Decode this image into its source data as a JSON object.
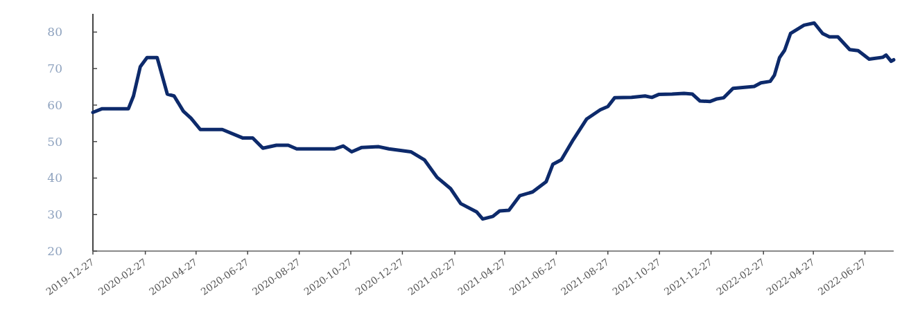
{
  "chart_data": {
    "type": "line",
    "x": [
      "2019-12-27",
      "2020-01-07",
      "2020-02-07",
      "2020-02-13",
      "2020-02-21",
      "2020-02-29",
      "2020-03-12",
      "2020-03-24",
      "2020-04-01",
      "2020-04-12",
      "2020-04-21",
      "2020-05-02",
      "2020-05-28",
      "2020-06-21",
      "2020-07-03",
      "2020-07-15",
      "2020-07-31",
      "2020-08-14",
      "2020-08-24",
      "2020-10-08",
      "2020-10-18",
      "2020-10-28",
      "2020-11-09",
      "2020-11-29",
      "2020-12-11",
      "2021-01-06",
      "2021-01-22",
      "2021-02-06",
      "2021-02-22",
      "2021-03-06",
      "2021-03-25",
      "2021-04-01",
      "2021-04-13",
      "2021-04-21",
      "2021-05-02",
      "2021-05-15",
      "2021-05-30",
      "2021-06-15",
      "2021-06-23",
      "2021-07-03",
      "2021-07-17",
      "2021-08-02",
      "2021-08-18",
      "2021-08-27",
      "2021-09-04",
      "2021-09-24",
      "2021-10-10",
      "2021-10-18",
      "2021-10-26",
      "2021-11-11",
      "2021-11-25",
      "2021-12-05",
      "2021-12-14",
      "2021-12-26",
      "2022-01-03",
      "2022-01-11",
      "2022-01-22",
      "2022-02-16",
      "2022-02-24",
      "2022-03-07",
      "2022-03-12",
      "2022-03-18",
      "2022-03-24",
      "2022-03-31",
      "2022-04-16",
      "2022-04-28",
      "2022-05-08",
      "2022-05-16",
      "2022-05-26",
      "2022-06-09",
      "2022-06-19",
      "2022-07-02",
      "2022-07-18",
      "2022-07-22",
      "2022-07-28",
      "2022-07-31"
    ],
    "series": [
      {
        "color": "#0d2a6b",
        "values": [
          58,
          59,
          59,
          62.5,
          70.5,
          73,
          73,
          63,
          62.5,
          58.3,
          56.4,
          53.3,
          53.3,
          51,
          51,
          48.2,
          49,
          49,
          48,
          48,
          48.8,
          47.2,
          48.4,
          48.6,
          48,
          47.2,
          45,
          40.2,
          37.1,
          33,
          30.7,
          28.8,
          29.5,
          31,
          31.2,
          35.2,
          36.2,
          39,
          43.8,
          45,
          50.5,
          56.2,
          58.7,
          59.6,
          62,
          62.1,
          62.5,
          62.1,
          62.9,
          63,
          63.2,
          63,
          61.1,
          61,
          61.7,
          62,
          64.6,
          65.1,
          66.1,
          66.5,
          68.2,
          73,
          75,
          79.6,
          81.9,
          82.5,
          79.6,
          78.7,
          78.7,
          75.2,
          74.9,
          72.6,
          73.1,
          73.7,
          72,
          72.4
        ]
      }
    ],
    "xlim": [
      "2019-12-27",
      "2022-07-31"
    ],
    "xticks": [
      "2019-12-27",
      "2020-02-27",
      "2020-04-27",
      "2020-06-27",
      "2020-08-27",
      "2020-10-27",
      "2020-12-27",
      "2021-02-27",
      "2021-04-27",
      "2021-06-27",
      "2021-08-27",
      "2021-10-27",
      "2021-12-27",
      "2022-02-27",
      "2022-04-27",
      "2022-06-27"
    ],
    "ylim": [
      20,
      85
    ],
    "yticks": [
      20,
      30,
      40,
      50,
      60,
      70,
      80
    ],
    "grid": false,
    "marker": "none",
    "line_style": "solid"
  }
}
